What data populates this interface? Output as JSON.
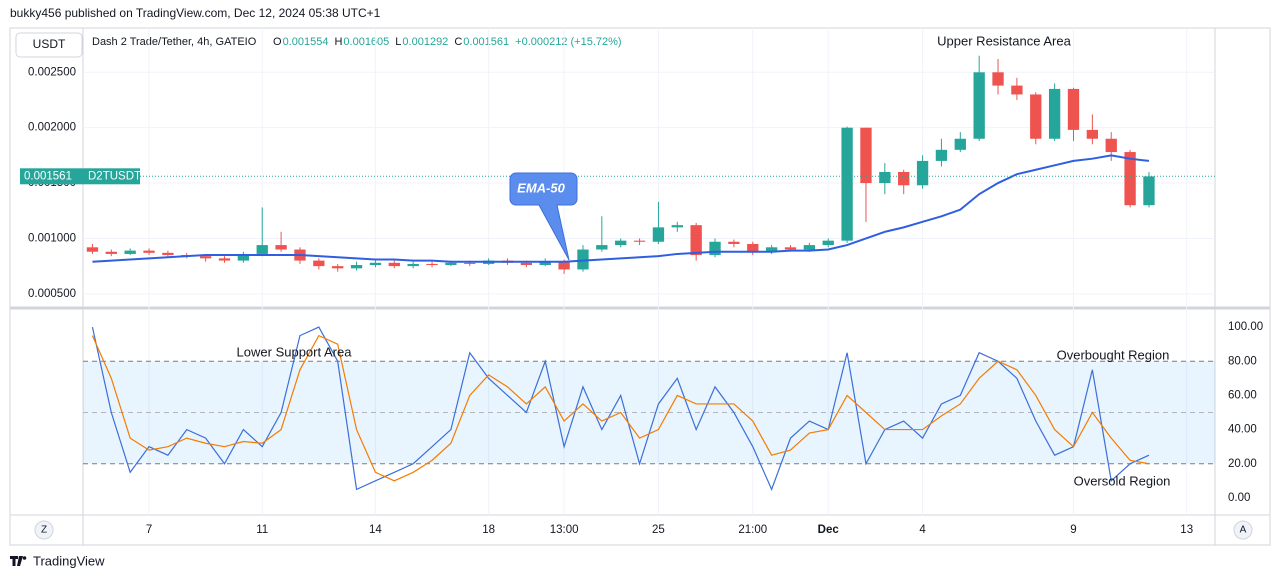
{
  "header": {
    "publisher": "bukky456 published on TradingView.com, Dec 12, 2024 05:38 UTC+1",
    "currency": "USDT",
    "symbol_info": "Dash 2 Trade/Tether, 4h, GATEIO",
    "ohlc": [
      {
        "label": "O",
        "value": "0.001554"
      },
      {
        "label": "H",
        "value": "0.001605"
      },
      {
        "label": "L",
        "value": "0.001292"
      },
      {
        "label": "C",
        "value": "0.001561"
      }
    ],
    "change": "+0.000212 (+15.72%)",
    "scale_buttons": [
      "Z",
      "A"
    ]
  },
  "chart_data": [
    {
      "type": "candlestick",
      "categories": [
        null,
        null,
        null,
        "7",
        null,
        null,
        null,
        null,
        null,
        "11",
        null,
        null,
        null,
        null,
        null,
        "14",
        null,
        null,
        null,
        null,
        null,
        "18",
        null,
        null,
        null,
        "13:00",
        null,
        null,
        null,
        null,
        "25",
        null,
        null,
        null,
        null,
        "21:00",
        null,
        null,
        null,
        "Dec",
        null,
        null,
        null,
        null,
        "4",
        null,
        null,
        null,
        null,
        null,
        null,
        null,
        "9",
        null,
        null,
        null,
        null,
        null,
        "13",
        null
      ],
      "open": [
        0.00092,
        0.00088,
        0.00086,
        0.00089,
        0.00087,
        0.00085,
        0.00084,
        0.00082,
        0.0008,
        0.00086,
        0.00094,
        0.0009,
        0.0008,
        0.00075,
        0.00073,
        0.00076,
        0.00078,
        0.00075,
        0.00077,
        0.00076,
        0.00078,
        0.00077,
        0.0008,
        0.00078,
        0.00076,
        0.00079,
        0.00072,
        0.0009,
        0.00094,
        0.00098,
        0.00097,
        0.0011,
        0.00112,
        0.00085,
        0.00097,
        0.00095,
        0.00088,
        0.00092,
        0.0009,
        0.00094,
        0.00098,
        0.002,
        0.0015,
        0.0016,
        0.00148,
        0.0017,
        0.0018,
        0.0019,
        0.0025,
        0.00238,
        0.0023,
        0.0019,
        0.00235,
        0.00198,
        0.0019,
        0.00178,
        0.0013,
        null,
        null,
        null
      ],
      "high": [
        0.00095,
        0.0009,
        0.00091,
        0.00091,
        0.00089,
        0.00087,
        0.00086,
        0.00084,
        0.00088,
        0.00128,
        0.00106,
        0.00092,
        0.00082,
        0.00077,
        0.00079,
        0.0008,
        0.0008,
        0.00079,
        0.00079,
        0.0008,
        0.0008,
        0.00082,
        0.00082,
        0.0008,
        0.00082,
        0.00081,
        0.00094,
        0.0012,
        0.001,
        0.001,
        0.00133,
        0.00115,
        0.00114,
        0.001,
        0.00099,
        0.00097,
        0.00094,
        0.00094,
        0.00096,
        0.001,
        0.00201,
        0.002,
        0.00168,
        0.00162,
        0.00175,
        0.0019,
        0.00196,
        0.00265,
        0.00262,
        0.00245,
        0.00232,
        0.0024,
        0.00236,
        0.00212,
        0.00196,
        0.0018,
        0.0016,
        null,
        null,
        null
      ],
      "low": [
        0.00086,
        0.00084,
        0.00085,
        0.00085,
        0.00083,
        0.00082,
        0.00079,
        0.00078,
        0.00078,
        0.00084,
        0.00088,
        0.00077,
        0.00072,
        0.0007,
        0.00071,
        0.00074,
        0.00073,
        0.00073,
        0.00074,
        0.00075,
        0.00075,
        0.00076,
        0.00076,
        0.00074,
        0.00075,
        0.00068,
        0.0007,
        0.00088,
        0.00092,
        0.00094,
        0.00095,
        0.00106,
        0.0008,
        0.00083,
        0.00092,
        0.00085,
        0.00086,
        0.00088,
        0.00088,
        0.00092,
        0.00096,
        0.00115,
        0.0014,
        0.0014,
        0.00145,
        0.00165,
        0.00178,
        0.00188,
        0.0023,
        0.00225,
        0.00185,
        0.00188,
        0.00188,
        0.00185,
        0.0017,
        0.00128,
        0.00128,
        null,
        null,
        null
      ],
      "close": [
        0.00088,
        0.00086,
        0.00089,
        0.00087,
        0.00085,
        0.00084,
        0.00082,
        0.0008,
        0.00086,
        0.00094,
        0.0009,
        0.0008,
        0.00075,
        0.00073,
        0.00076,
        0.00078,
        0.00075,
        0.00077,
        0.00076,
        0.00078,
        0.00077,
        0.0008,
        0.00078,
        0.00076,
        0.00079,
        0.00072,
        0.0009,
        0.00094,
        0.00098,
        0.00097,
        0.0011,
        0.00112,
        0.00085,
        0.00097,
        0.00095,
        0.00088,
        0.00092,
        0.0009,
        0.00094,
        0.00098,
        0.002,
        0.0015,
        0.0016,
        0.00148,
        0.0017,
        0.0018,
        0.0019,
        0.0025,
        0.00238,
        0.0023,
        0.0019,
        0.00235,
        0.00198,
        0.0019,
        0.00178,
        0.0013,
        0.00156,
        null,
        null,
        null
      ],
      "up_color": "#26a69a",
      "down_color": "#ef5350",
      "ema": {
        "label": "EMA-50",
        "color": "#2f5fe0",
        "values": [
          0.00079,
          0.0008,
          0.00081,
          0.00082,
          0.00083,
          0.00084,
          0.00085,
          0.00085,
          0.00085,
          0.00085,
          0.00085,
          0.00085,
          0.00084,
          0.00083,
          0.00082,
          0.00081,
          0.00081,
          0.0008,
          0.0008,
          0.00079,
          0.00079,
          0.00079,
          0.00079,
          0.00079,
          0.00079,
          0.00079,
          0.0008,
          0.00081,
          0.00082,
          0.00083,
          0.00084,
          0.00086,
          0.00087,
          0.00088,
          0.00088,
          0.00088,
          0.00088,
          0.00089,
          0.00089,
          0.0009,
          0.00094,
          0.001,
          0.00106,
          0.0011,
          0.00115,
          0.0012,
          0.00126,
          0.0014,
          0.0015,
          0.00158,
          0.00162,
          0.00166,
          0.0017,
          0.00172,
          0.00175,
          0.00172,
          0.0017,
          null,
          null,
          null
        ]
      },
      "last_price": {
        "value": 0.001561,
        "label": "0.001561",
        "symbol": "D2TUSDT"
      },
      "annotation": "Upper Resistance Area",
      "ylim": [
        0.00039,
        0.0029
      ],
      "yticks": [
        {
          "value": 0.0005,
          "label": "0.000500"
        },
        {
          "value": 0.001,
          "label": "0.001000"
        },
        {
          "value": 0.0015,
          "label": "0.001500"
        },
        {
          "value": 0.002,
          "label": "0.002000"
        },
        {
          "value": 0.0025,
          "label": "0.002500"
        }
      ],
      "grid": true
    },
    {
      "type": "line",
      "series": [
        {
          "color": "#3b6fd9",
          "values": [
            100,
            50,
            15,
            30,
            25,
            40,
            35,
            20,
            40,
            30,
            50,
            95,
            100,
            80,
            5,
            10,
            15,
            20,
            30,
            40,
            85,
            70,
            60,
            50,
            80,
            30,
            65,
            40,
            60,
            20,
            55,
            70,
            40,
            65,
            50,
            30,
            5,
            35,
            45,
            40,
            85,
            20,
            40,
            45,
            35,
            55,
            60,
            85,
            80,
            70,
            45,
            25,
            30,
            75,
            10,
            20,
            25,
            null,
            null,
            null
          ]
        },
        {
          "color": "#f57c00",
          "values": [
            95,
            70,
            35,
            28,
            30,
            35,
            32,
            30,
            33,
            32,
            40,
            75,
            95,
            90,
            40,
            15,
            10,
            15,
            22,
            32,
            60,
            72,
            65,
            55,
            65,
            45,
            55,
            45,
            50,
            35,
            40,
            60,
            55,
            55,
            55,
            45,
            25,
            28,
            38,
            40,
            60,
            50,
            40,
            40,
            40,
            48,
            55,
            70,
            80,
            75,
            60,
            40,
            30,
            50,
            35,
            22,
            20,
            null,
            null,
            null
          ]
        }
      ],
      "bands": [
        20,
        80
      ],
      "midline": 50,
      "annotations": [
        "Lower Support Area",
        "Overbought Region",
        "Oversold Region"
      ],
      "ylim": [
        -10,
        110
      ],
      "yticks": [
        {
          "value": 0,
          "label": "0.00"
        },
        {
          "value": 20,
          "label": "20.00"
        },
        {
          "value": 40,
          "label": "40.00"
        },
        {
          "value": 60,
          "label": "60.00"
        },
        {
          "value": 80,
          "label": "80.00"
        },
        {
          "value": 100,
          "label": "100.00"
        }
      ]
    }
  ],
  "footer": {
    "brand": "TradingView"
  }
}
